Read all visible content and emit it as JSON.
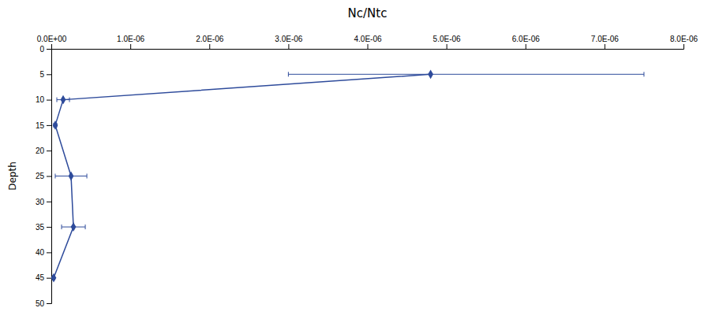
{
  "chart_data": {
    "type": "line",
    "title": "Nc/Ntc",
    "ylabel": "Depth",
    "xlim": [
      0.0,
      8e-06
    ],
    "ylim": [
      50,
      0
    ],
    "xticks": [
      {
        "value": 0.0,
        "label": "0.0E+00"
      },
      {
        "value": 1e-06,
        "label": "1.0E-06"
      },
      {
        "value": 2e-06,
        "label": "2.0E-06"
      },
      {
        "value": 3e-06,
        "label": "3.0E-06"
      },
      {
        "value": 4e-06,
        "label": "4.0E-06"
      },
      {
        "value": 5e-06,
        "label": "5.0E-06"
      },
      {
        "value": 6e-06,
        "label": "6.0E-06"
      },
      {
        "value": 7e-06,
        "label": "7.0E-06"
      },
      {
        "value": 8e-06,
        "label": "8.0E-06"
      }
    ],
    "yticks": [
      0,
      5,
      10,
      15,
      20,
      25,
      30,
      35,
      40,
      45,
      50
    ],
    "x": [
      4.8e-06,
      1.5e-07,
      5e-08,
      2.5e-07,
      2.8e-07,
      3e-08
    ],
    "values": [
      5,
      10,
      15,
      25,
      35,
      45
    ],
    "error_left": [
      1.8e-06,
      8e-08,
      2e-08,
      2e-07,
      1.5e-07,
      1.5e-08
    ],
    "error_right": [
      2.7e-06,
      8e-08,
      2e-08,
      2e-07,
      1.5e-07,
      1.5e-08
    ],
    "color": "#2E4B9B",
    "marker": "diamond"
  }
}
